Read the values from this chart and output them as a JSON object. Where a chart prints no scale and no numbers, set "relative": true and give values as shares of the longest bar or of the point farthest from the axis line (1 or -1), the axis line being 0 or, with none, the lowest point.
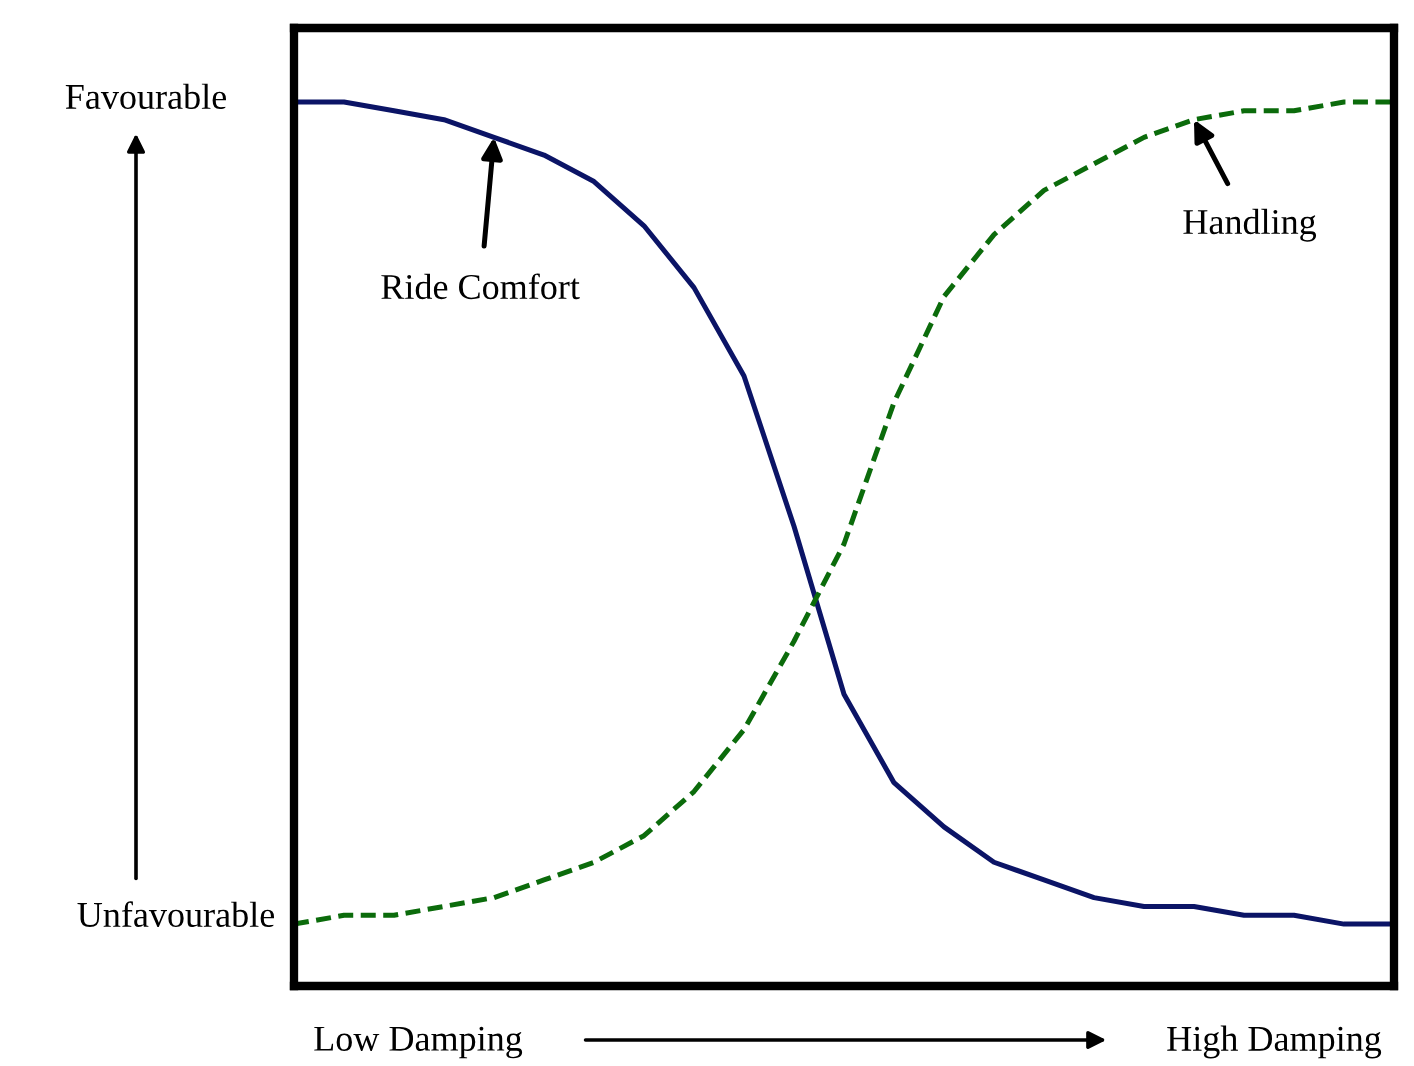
{
  "chart_data": {
    "type": "line",
    "relative": true,
    "legend": false,
    "categories": [
      null,
      null,
      null,
      null,
      null,
      null,
      null,
      null,
      null,
      null,
      null,
      null,
      null,
      null,
      null,
      null,
      null,
      null,
      null,
      null,
      null,
      null,
      null
    ],
    "series": [
      {
        "name": "Ride Comfort",
        "color": "#0b1466",
        "line_style": "solid",
        "values": [
          1.0,
          1.0,
          0.99,
          0.98,
          0.96,
          0.94,
          0.91,
          0.86,
          0.79,
          0.69,
          0.52,
          0.33,
          0.23,
          0.18,
          0.14,
          0.12,
          0.1,
          0.09,
          0.09,
          0.08,
          0.08,
          0.07,
          0.07
        ]
      },
      {
        "name": "Handling",
        "color": "#0b6b0b",
        "line_style": "dashed",
        "values": [
          0.07,
          0.08,
          0.08,
          0.09,
          0.1,
          0.12,
          0.14,
          0.17,
          0.22,
          0.29,
          0.39,
          0.5,
          0.66,
          0.78,
          0.85,
          0.9,
          0.93,
          0.96,
          0.98,
          0.99,
          0.99,
          1.0,
          1.0
        ]
      }
    ],
    "annotations": [
      "Favourable",
      "Unfavourable",
      "Low Damping",
      "High Damping"
    ]
  }
}
